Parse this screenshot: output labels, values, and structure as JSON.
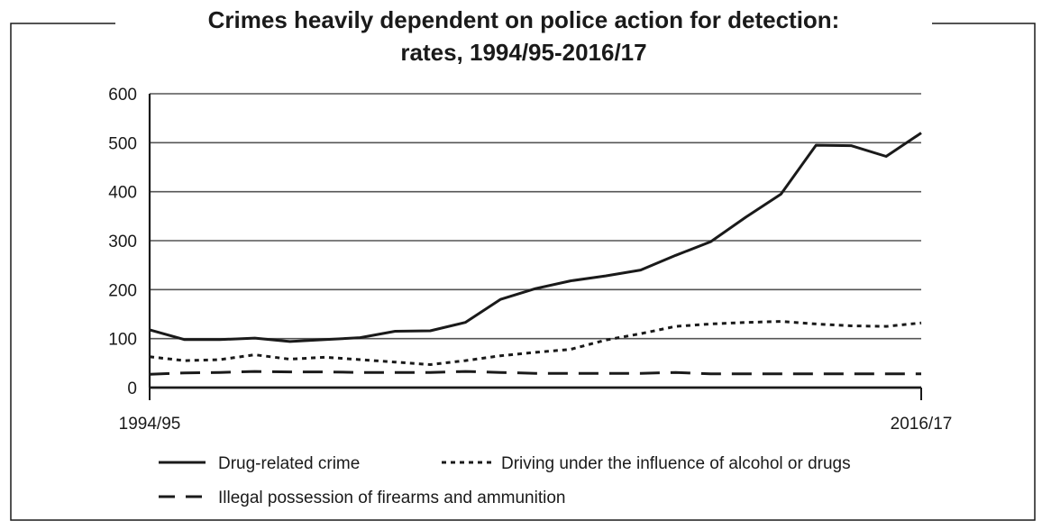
{
  "chart_data": {
    "type": "line",
    "title_lines": [
      "Crimes heavily dependent on police action for detection:",
      "rates, 1994/95-2016/17"
    ],
    "xlabel": "",
    "ylabel": "",
    "x_start_label": "1994/95",
    "x_end_label": "2016/17",
    "x_count": 23,
    "ylim": [
      0,
      600
    ],
    "yticks": [
      0,
      100,
      200,
      300,
      400,
      500,
      600
    ],
    "grid": "horizontal",
    "legend_position": "bottom",
    "series": [
      {
        "name": "Drug-related crime",
        "style": "solid",
        "color": "#1a1a1a",
        "values": [
          118,
          98,
          98,
          101,
          94,
          98,
          102,
          115,
          116,
          133,
          180,
          202,
          218,
          228,
          240,
          270,
          298,
          348,
          395,
          495,
          494,
          472,
          520
        ]
      },
      {
        "name": "Driving under the influence of alcohol or drugs",
        "style": "dotted",
        "color": "#1a1a1a",
        "values": [
          63,
          55,
          57,
          67,
          58,
          62,
          57,
          52,
          47,
          55,
          65,
          72,
          78,
          97,
          110,
          125,
          130,
          133,
          135,
          130,
          126,
          125,
          132
        ]
      },
      {
        "name": "Illegal possession of firearms and ammunition",
        "style": "dashed",
        "color": "#1a1a1a",
        "values": [
          27,
          30,
          31,
          33,
          32,
          32,
          31,
          31,
          31,
          33,
          31,
          29,
          29,
          29,
          29,
          31,
          28,
          28,
          28,
          28,
          28,
          28,
          28
        ]
      }
    ]
  }
}
